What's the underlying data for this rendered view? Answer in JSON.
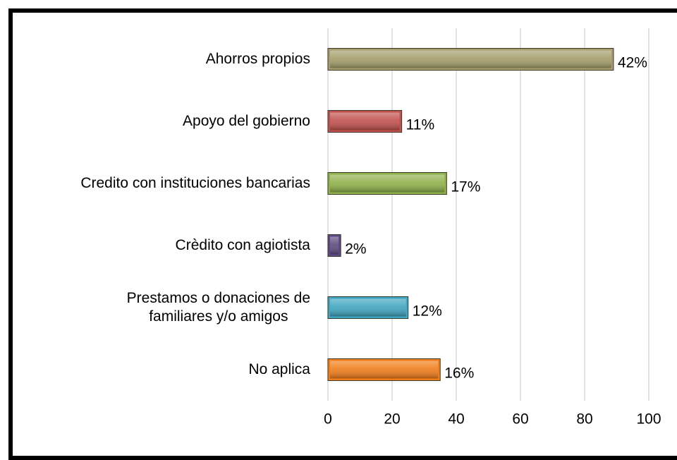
{
  "chart_data": {
    "type": "bar",
    "orientation": "horizontal",
    "categories": [
      "Ahorros propios",
      "Apoyo del gobierno",
      "Credito con instituciones bancarias",
      "Crèdito con agiotista",
      "Prestamos o donaciones de\nfamiliares y/o amigos",
      "No aplica"
    ],
    "values": [
      89,
      23,
      37,
      4,
      25,
      35
    ],
    "value_labels": [
      "42%",
      "11%",
      "17%",
      "2%",
      "12%",
      "16%"
    ],
    "colors": [
      "#a59d6b",
      "#c0504d",
      "#8fb04a",
      "#5b4a80",
      "#3fa5c0",
      "#f07d1a"
    ],
    "xlim": [
      0,
      100
    ],
    "xticks": [
      0,
      20,
      40,
      60,
      80,
      100
    ],
    "grid": true
  }
}
